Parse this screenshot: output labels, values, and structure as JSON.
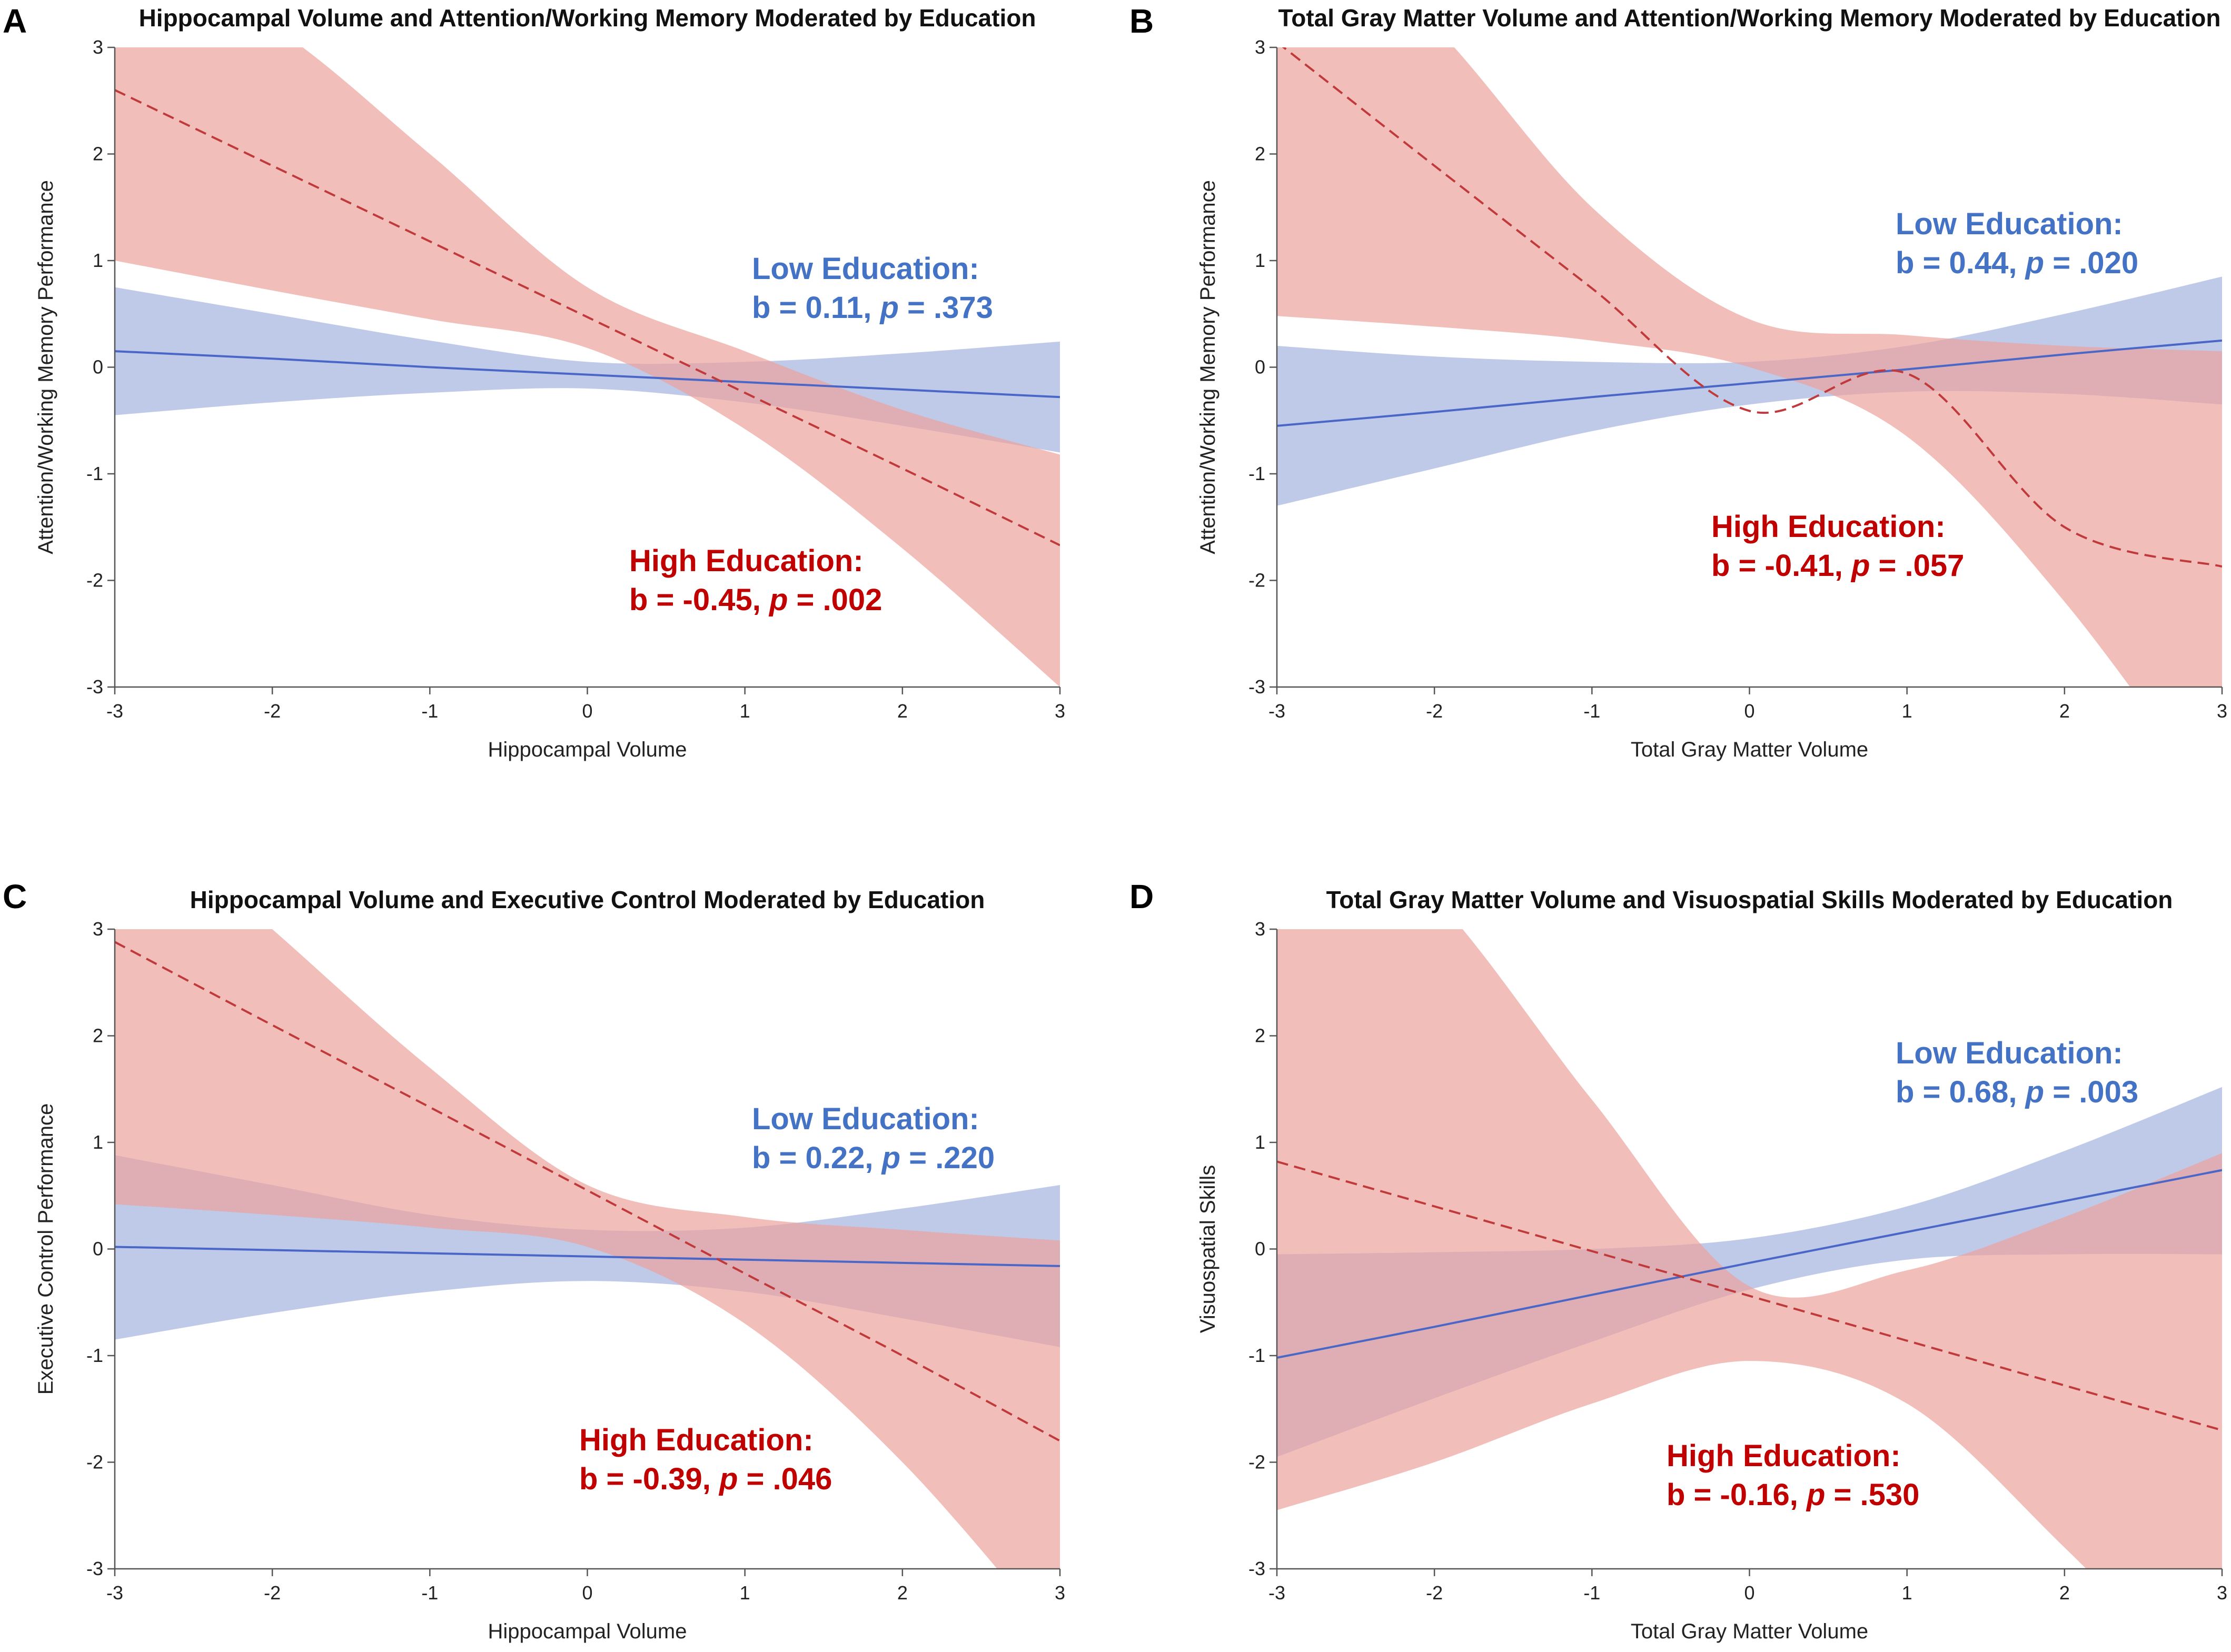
{
  "colors": {
    "low": "#4a67c8",
    "low_band": "#a9b8e2",
    "high": "#c0393b",
    "high_band": "#eba29d",
    "low_text": "#4472c4",
    "high_text": "#c00000"
  },
  "chart_data": [
    {
      "type": "line",
      "panel": "A",
      "title": "Hippocampal Volume and Attention/Working Memory Moderated by Education",
      "xlabel": "Hippocampal Volume",
      "ylabel": "Attention/Working Memory Performance",
      "xlim": [
        -3,
        3
      ],
      "ylim": [
        -3,
        3
      ],
      "xticks": [
        -3,
        -2,
        -1,
        0,
        1,
        2,
        3
      ],
      "yticks": [
        -3,
        -2,
        -1,
        0,
        1,
        2,
        3
      ],
      "x": [
        -3,
        -2,
        -1,
        0,
        1,
        2,
        3
      ],
      "series": [
        {
          "name": "Low Education",
          "line": [
            0.15,
            0.08,
            0.0,
            -0.07,
            -0.14,
            -0.21,
            -0.28
          ],
          "upper": [
            0.75,
            0.5,
            0.25,
            0.05,
            0.05,
            0.13,
            0.24
          ],
          "lower": [
            -0.45,
            -0.33,
            -0.24,
            -0.2,
            -0.33,
            -0.55,
            -0.8
          ],
          "annotation": {
            "line1": "Low Education:",
            "b": "b = 0.11,",
            "p_label": "p",
            "p": "= .373"
          }
        },
        {
          "name": "High Education",
          "line": [
            2.6,
            1.89,
            1.18,
            0.47,
            -0.24,
            -0.95,
            -1.67
          ],
          "upper": [
            3.9,
            3.2,
            2.0,
            0.75,
            0.15,
            -0.4,
            -0.82
          ],
          "lower": [
            1.0,
            0.72,
            0.45,
            0.18,
            -0.58,
            -1.7,
            -3.0
          ],
          "annotation": {
            "line1": "High Education:",
            "b": "b = -0.45,",
            "p_label": "p",
            "p": "= .002"
          }
        }
      ]
    },
    {
      "type": "line",
      "panel": "B",
      "title": "Total Gray Matter Volume and Attention/Working Memory Moderated by Education",
      "xlabel": "Total Gray Matter Volume",
      "ylabel": "Attention/Working Memory Performance",
      "xlim": [
        -3,
        3
      ],
      "ylim": [
        -3,
        3
      ],
      "xticks": [
        -3,
        -2,
        -1,
        0,
        1,
        2,
        3
      ],
      "yticks": [
        -3,
        -2,
        -1,
        0,
        1,
        2,
        3
      ],
      "x": [
        -3,
        -2,
        -1,
        0,
        1,
        2,
        3
      ],
      "series": [
        {
          "name": "Low Education",
          "line": [
            -0.55,
            -0.42,
            -0.28,
            -0.15,
            -0.02,
            0.12,
            0.25
          ],
          "upper": [
            0.2,
            0.1,
            0.05,
            0.05,
            0.2,
            0.5,
            0.85
          ],
          "lower": [
            -1.3,
            -0.95,
            -0.6,
            -0.35,
            -0.23,
            -0.25,
            -0.35
          ],
          "annotation": {
            "line1": "Low Education:",
            "b": "b = 0.44,",
            "p_label": "p",
            "p": "= .020"
          }
        },
        {
          "name": "High Education",
          "line": [
            3.05,
            1.89,
            0.74,
            -0.41,
            -0.06,
            -1.5,
            -1.87
          ],
          "upper": [
            4.5,
            3.2,
            1.5,
            0.45,
            0.3,
            0.2,
            0.15
          ],
          "lower": [
            0.48,
            0.38,
            0.25,
            0.0,
            -0.65,
            -2.2,
            -4.2
          ],
          "annotation": {
            "line1": "High Education:",
            "b": "b = -0.41,",
            "p_label": "p",
            "p": "= .057"
          }
        }
      ]
    },
    {
      "type": "line",
      "panel": "C",
      "title": "Hippocampal Volume and Executive Control Moderated by Education",
      "xlabel": "Hippocampal Volume",
      "ylabel": "Executive Control Performance",
      "xlim": [
        -3,
        3
      ],
      "ylim": [
        -3,
        3
      ],
      "xticks": [
        -3,
        -2,
        -1,
        0,
        1,
        2,
        3
      ],
      "yticks": [
        -3,
        -2,
        -1,
        0,
        1,
        2,
        3
      ],
      "x": [
        -3,
        -2,
        -1,
        0,
        1,
        2,
        3
      ],
      "series": [
        {
          "name": "Low Education",
          "line": [
            0.02,
            -0.01,
            -0.04,
            -0.07,
            -0.1,
            -0.13,
            -0.16
          ],
          "upper": [
            0.88,
            0.6,
            0.32,
            0.18,
            0.2,
            0.38,
            0.6
          ],
          "lower": [
            -0.85,
            -0.6,
            -0.4,
            -0.3,
            -0.4,
            -0.65,
            -0.92
          ],
          "annotation": {
            "line1": "Low Education:",
            "b": "b = 0.22,",
            "p_label": "p",
            "p": "= .220"
          }
        },
        {
          "name": "High Education",
          "line": [
            2.88,
            2.1,
            1.33,
            0.55,
            -0.23,
            -1.0,
            -1.8
          ],
          "upper": [
            4.3,
            3.0,
            1.7,
            0.6,
            0.3,
            0.18,
            0.08
          ],
          "lower": [
            0.42,
            0.32,
            0.2,
            0.02,
            -0.7,
            -2.0,
            -3.7
          ],
          "annotation": {
            "line1": "High Education:",
            "b": "b = -0.39,",
            "p_label": "p",
            "p": "= .046"
          }
        }
      ]
    },
    {
      "type": "line",
      "panel": "D",
      "title": "Total Gray Matter Volume and Visuospatial Skills Moderated by Education",
      "xlabel": "Total Gray Matter Volume",
      "ylabel": "Visuospatial Skills",
      "xlim": [
        -3,
        3
      ],
      "ylim": [
        -3,
        3
      ],
      "xticks": [
        -3,
        -2,
        -1,
        0,
        1,
        2,
        3
      ],
      "yticks": [
        -3,
        -2,
        -1,
        0,
        1,
        2,
        3
      ],
      "x": [
        -3,
        -2,
        -1,
        0,
        1,
        2,
        3
      ],
      "series": [
        {
          "name": "Low Education",
          "line": [
            -1.02,
            -0.73,
            -0.43,
            -0.13,
            0.16,
            0.45,
            0.74
          ],
          "upper": [
            -0.05,
            -0.03,
            0.0,
            0.1,
            0.4,
            0.92,
            1.52
          ],
          "lower": [
            -1.95,
            -1.4,
            -0.87,
            -0.38,
            -0.1,
            -0.05,
            -0.05
          ],
          "annotation": {
            "line1": "Low Education:",
            "b": "b = 0.68,",
            "p_label": "p",
            "p": "= .003"
          }
        },
        {
          "name": "High Education",
          "line": [
            0.82,
            0.4,
            -0.02,
            -0.44,
            -0.86,
            -1.28,
            -1.7
          ],
          "upper": [
            4.5,
            3.3,
            1.4,
            -0.35,
            -0.2,
            0.3,
            0.9
          ],
          "lower": [
            -2.45,
            -2.0,
            -1.45,
            -1.05,
            -1.45,
            -2.8,
            -4.3
          ],
          "annotation": {
            "line1": "High Education:",
            "b": "b = -0.16,",
            "p_label": "p",
            "p": "= .530"
          }
        }
      ]
    }
  ]
}
